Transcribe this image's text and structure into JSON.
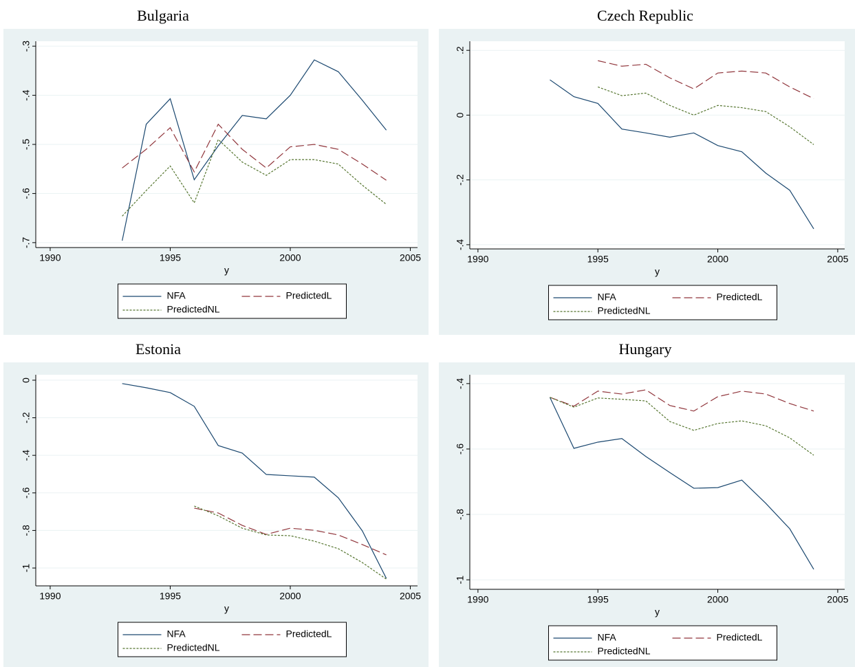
{
  "chart_data": [
    {
      "type": "line",
      "title": "Bulgaria",
      "x_label": "y",
      "x": [
        1993,
        1994,
        1995,
        1996,
        1997,
        1998,
        1999,
        2000,
        2001,
        2002,
        2003,
        2004
      ],
      "xlim": [
        1989.4,
        2005.3
      ],
      "xticks": [
        1990,
        1995,
        2000,
        2005
      ],
      "ylim": [
        -0.71,
        -0.29
      ],
      "yticks": [
        {
          "value": -0.7,
          "label": "-.7"
        },
        {
          "value": -0.6,
          "label": "-.6"
        },
        {
          "value": -0.5,
          "label": "-.5"
        },
        {
          "value": -0.4,
          "label": "-.4"
        },
        {
          "value": -0.3,
          "label": "-.3"
        }
      ],
      "grid": true,
      "series": [
        {
          "name": "NFA",
          "color": "#1a476f",
          "dash": "solid",
          "values": [
            -0.696,
            -0.459,
            -0.407,
            -0.572,
            -0.503,
            -0.441,
            -0.448,
            -0.4,
            -0.328,
            -0.352,
            -0.41,
            -0.471
          ]
        },
        {
          "name": "PredictedL",
          "color": "#90353b",
          "dash": "longdash",
          "values": [
            -0.548,
            -0.51,
            -0.466,
            -0.556,
            -0.459,
            -0.51,
            -0.548,
            -0.505,
            -0.5,
            -0.51,
            -0.54,
            -0.573
          ]
        },
        {
          "name": "PredictedNL",
          "color": "#55752f",
          "dash": "shortdash",
          "values": [
            -0.646,
            -0.594,
            -0.544,
            -0.619,
            -0.49,
            -0.536,
            -0.563,
            -0.531,
            -0.531,
            -0.54,
            -0.583,
            -0.622
          ]
        }
      ]
    },
    {
      "type": "line",
      "title": "Czech Republic",
      "x_label": "y",
      "x": [
        1993,
        1994,
        1995,
        1996,
        1997,
        1998,
        1999,
        2000,
        2001,
        2002,
        2003,
        2004
      ],
      "xlim": [
        1989.66,
        2005.29
      ],
      "xticks": [
        1990,
        1995,
        2000,
        2005
      ],
      "ylim": [
        -0.413,
        0.228
      ],
      "yticks": [
        {
          "value": -0.4,
          "label": "-.4"
        },
        {
          "value": -0.2,
          "label": "-.2"
        },
        0,
        {
          "value": 0.2,
          "label": ".2"
        }
      ],
      "grid": true,
      "series": [
        {
          "name": "NFA",
          "color": "#1a476f",
          "dash": "solid",
          "values": [
            0.109,
            0.057,
            0.036,
            -0.043,
            -0.055,
            -0.068,
            -0.055,
            -0.094,
            -0.113,
            -0.179,
            -0.232,
            -0.351
          ]
        },
        {
          "name": "PredictedL",
          "color": "#90353b",
          "dash": "longdash",
          "values": [
            null,
            null,
            0.168,
            0.151,
            0.157,
            0.115,
            0.081,
            0.13,
            0.136,
            0.13,
            0.087,
            0.051
          ]
        },
        {
          "name": "PredictedNL",
          "color": "#55752f",
          "dash": "shortdash",
          "values": [
            null,
            null,
            0.087,
            0.06,
            0.068,
            0.03,
            0,
            0.03,
            0.023,
            0.011,
            -0.036,
            -0.091
          ]
        }
      ]
    },
    {
      "type": "line",
      "title": "Estonia",
      "x_label": "y",
      "x": [
        1993,
        1994,
        1995,
        1996,
        1997,
        1998,
        1999,
        2000,
        2001,
        2002,
        2003,
        2004
      ],
      "xlim": [
        1989.4,
        2005.3
      ],
      "xticks": [
        1990,
        1995,
        2000,
        2005
      ],
      "ylim": [
        -1.095,
        0.029
      ],
      "yticks": [
        -1,
        {
          "value": -0.8,
          "label": "-.8"
        },
        {
          "value": -0.6,
          "label": "-.6"
        },
        {
          "value": -0.4,
          "label": "-.4"
        },
        {
          "value": -0.2,
          "label": "-.2"
        },
        0
      ],
      "grid": true,
      "series": [
        {
          "name": "NFA",
          "color": "#1a476f",
          "dash": "solid",
          "values": [
            -0.018,
            -0.04,
            -0.066,
            -0.139,
            -0.348,
            -0.388,
            -0.502,
            -0.509,
            -0.516,
            -0.626,
            -0.802,
            -1.055
          ]
        },
        {
          "name": "PredictedL",
          "color": "#90353b",
          "dash": "longdash",
          "values": [
            null,
            null,
            null,
            -0.681,
            -0.707,
            -0.773,
            -0.821,
            -0.788,
            -0.799,
            -0.824,
            -0.875,
            -0.93
          ]
        },
        {
          "name": "PredictedNL",
          "color": "#55752f",
          "dash": "shortdash",
          "values": [
            null,
            null,
            null,
            -0.67,
            -0.722,
            -0.788,
            -0.824,
            -0.828,
            -0.857,
            -0.897,
            -0.971,
            -1.059
          ]
        }
      ]
    },
    {
      "type": "line",
      "title": "Hungary",
      "x_label": "y",
      "x": [
        1993,
        1994,
        1995,
        1996,
        1997,
        1998,
        1999,
        2000,
        2001,
        2002,
        2003,
        2004
      ],
      "xlim": [
        1989.66,
        2005.29
      ],
      "xticks": [
        1990,
        1995,
        2000,
        2005
      ],
      "ylim": [
        -1.029,
        -0.373
      ],
      "yticks": [
        -1,
        {
          "value": -0.8,
          "label": "-.8"
        },
        {
          "value": -0.6,
          "label": "-.6"
        },
        {
          "value": -0.4,
          "label": "-.4"
        }
      ],
      "grid": true,
      "series": [
        {
          "name": "NFA",
          "color": "#1a476f",
          "dash": "solid",
          "values": [
            -0.442,
            -0.598,
            -0.579,
            -0.568,
            -0.623,
            -0.672,
            -0.72,
            -0.718,
            -0.695,
            -0.766,
            -0.844,
            -0.968
          ]
        },
        {
          "name": "PredictedL",
          "color": "#90353b",
          "dash": "longdash",
          "values": [
            -0.442,
            -0.469,
            -0.423,
            -0.432,
            -0.419,
            -0.467,
            -0.484,
            -0.44,
            -0.423,
            -0.432,
            -0.461,
            -0.484
          ]
        },
        {
          "name": "PredictedNL",
          "color": "#55752f",
          "dash": "shortdash",
          "values": [
            -0.442,
            -0.472,
            -0.444,
            -0.448,
            -0.453,
            -0.516,
            -0.543,
            -0.522,
            -0.514,
            -0.529,
            -0.566,
            -0.619
          ]
        }
      ]
    }
  ]
}
